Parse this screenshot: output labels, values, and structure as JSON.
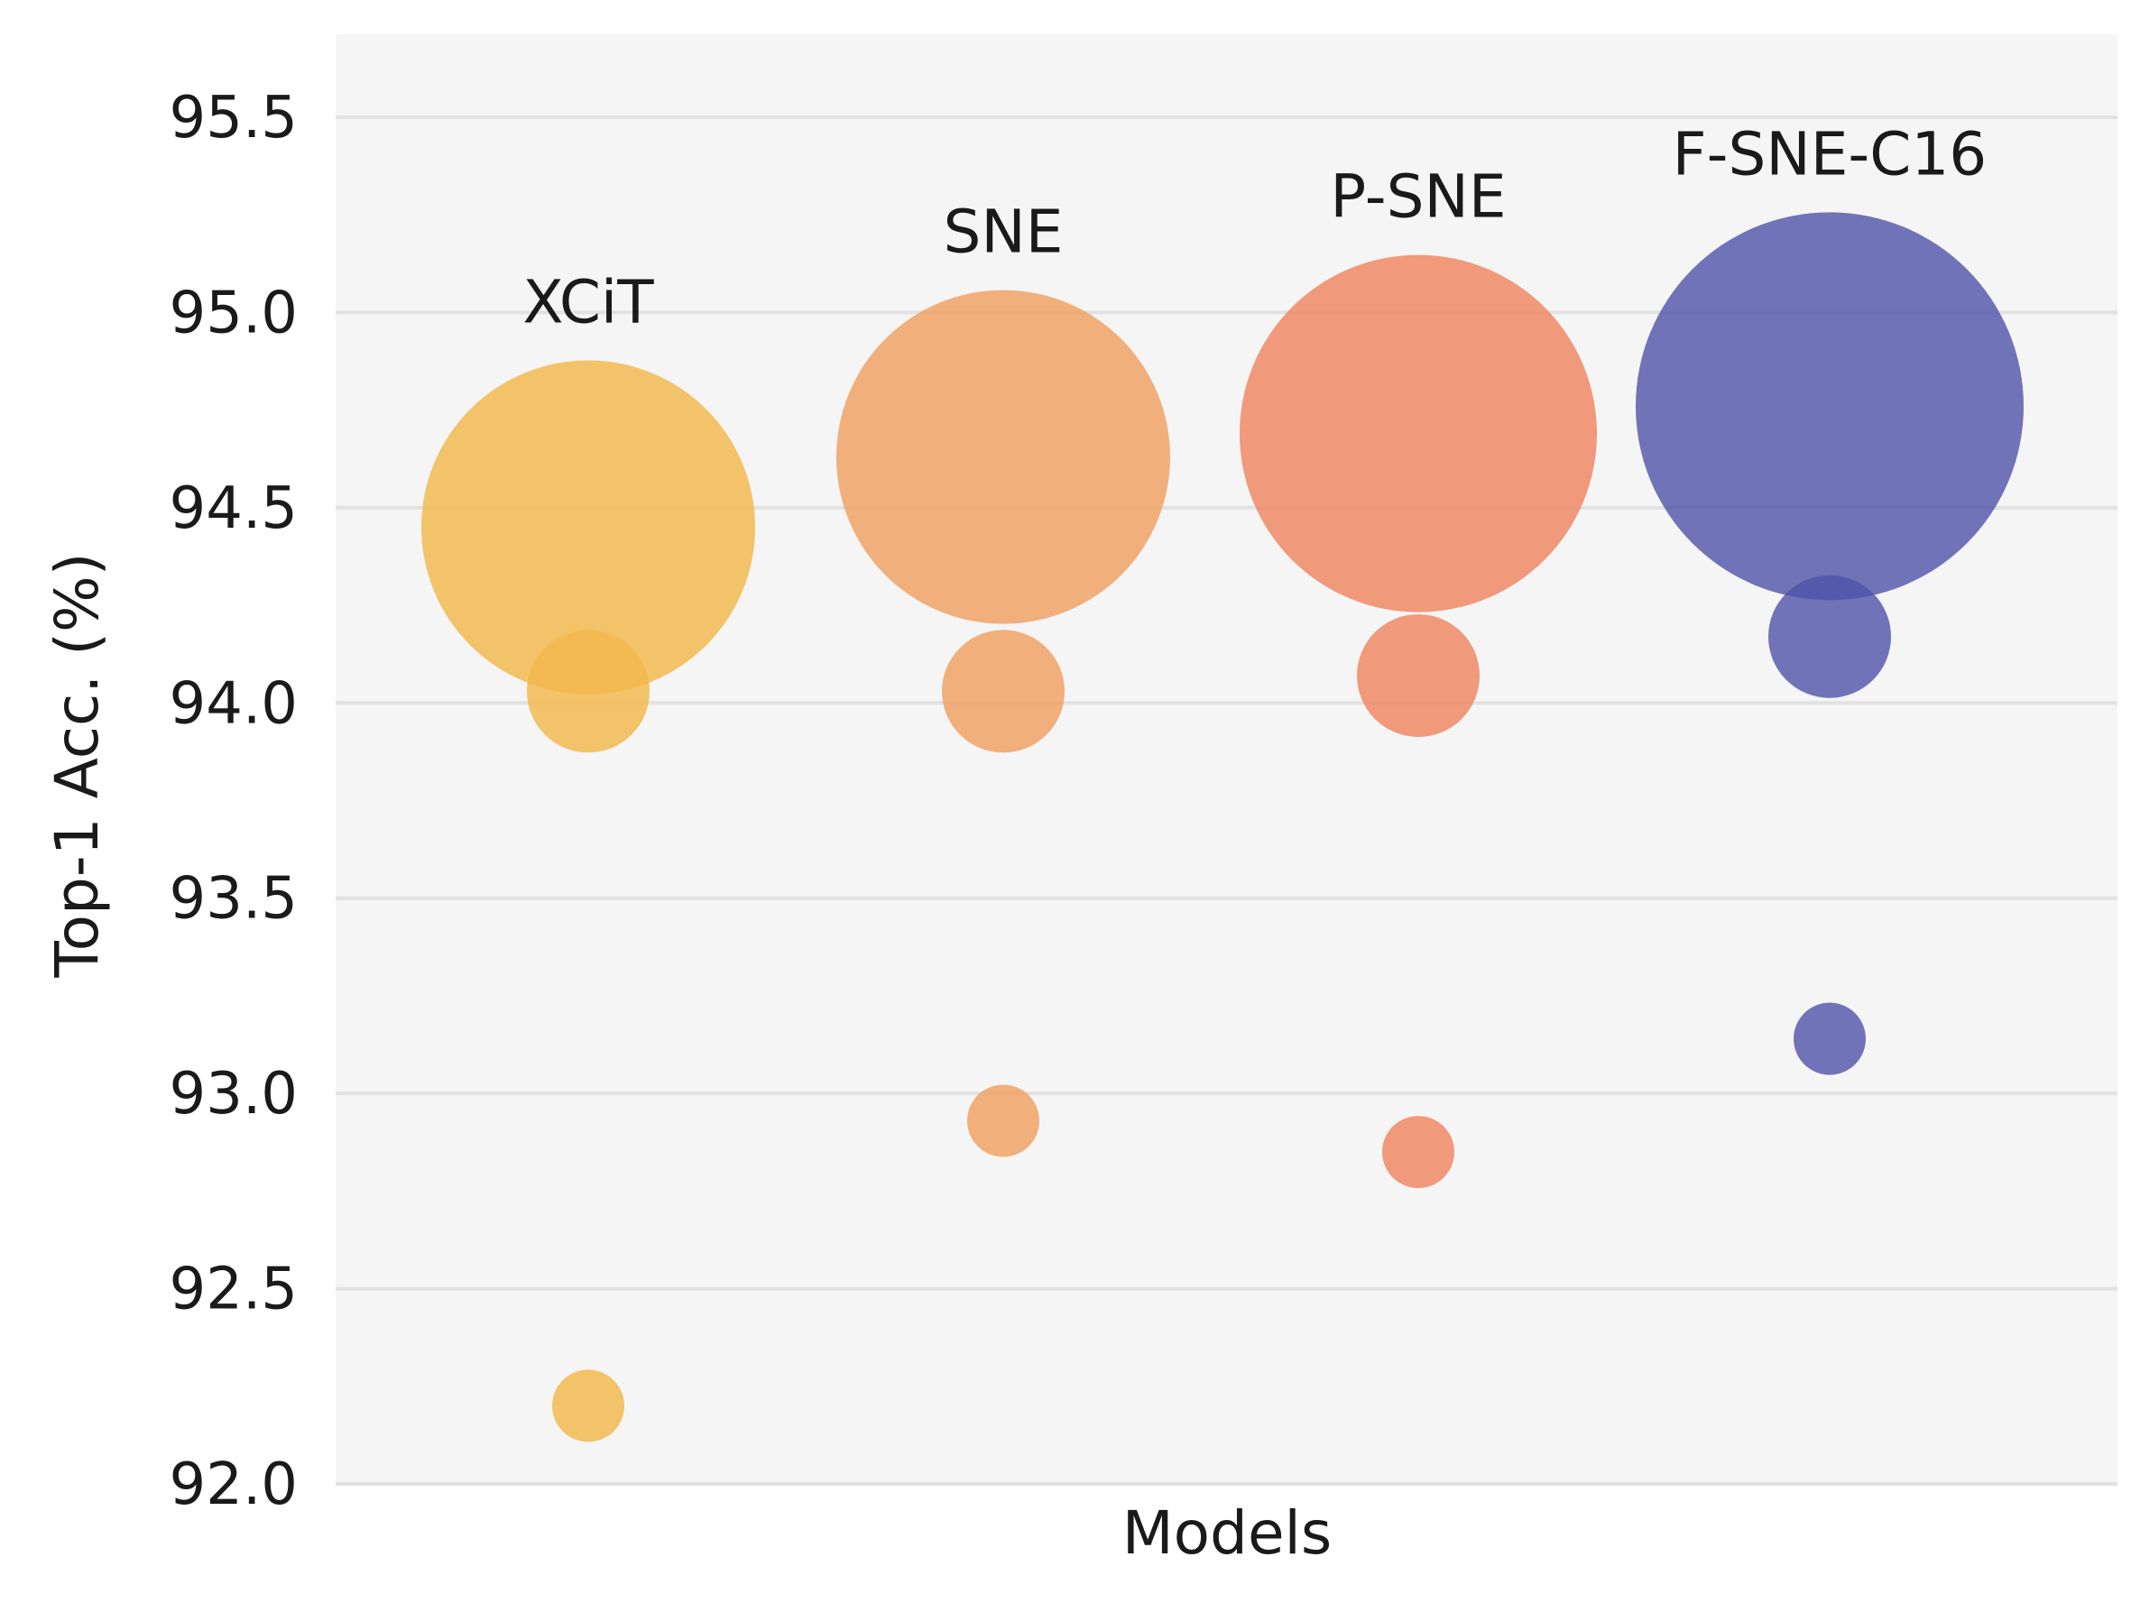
{
  "chart_data": {
    "type": "scatter",
    "title": "",
    "xlabel": "Models",
    "ylabel": "Top-1 Acc. (%)",
    "ylim": [
      92.0,
      95.7
    ],
    "yticks": [
      92.0,
      92.5,
      93.0,
      93.5,
      94.0,
      94.5,
      95.0,
      95.5
    ],
    "ytick_labels": [
      "92.0",
      "92.5",
      "93.0",
      "93.5",
      "94.0",
      "94.5",
      "95.0",
      "95.5"
    ],
    "grid": true,
    "legend": "none",
    "categories": [
      "XCiT",
      "SNE",
      "P-SNE",
      "F-SNE-C16"
    ],
    "series": [
      {
        "name": "XCiT",
        "color": "#f2b84b",
        "points": [
          {
            "y": 92.2,
            "size": 1
          },
          {
            "y": 94.03,
            "size": 2
          },
          {
            "y": 94.45,
            "size": 5
          }
        ]
      },
      {
        "name": "SNE",
        "color": "#f0a060",
        "points": [
          {
            "y": 92.93,
            "size": 1
          },
          {
            "y": 94.03,
            "size": 2
          },
          {
            "y": 94.63,
            "size": 5
          }
        ]
      },
      {
        "name": "P-SNE",
        "color": "#ef8560",
        "points": [
          {
            "y": 92.85,
            "size": 1
          },
          {
            "y": 94.07,
            "size": 2
          },
          {
            "y": 94.69,
            "size": 5
          }
        ]
      },
      {
        "name": "F-SNE-C16",
        "color": "#4f52a8",
        "points": [
          {
            "y": 93.14,
            "size": 1
          },
          {
            "y": 94.17,
            "size": 2
          },
          {
            "y": 94.76,
            "size": 5
          }
        ]
      }
    ]
  }
}
